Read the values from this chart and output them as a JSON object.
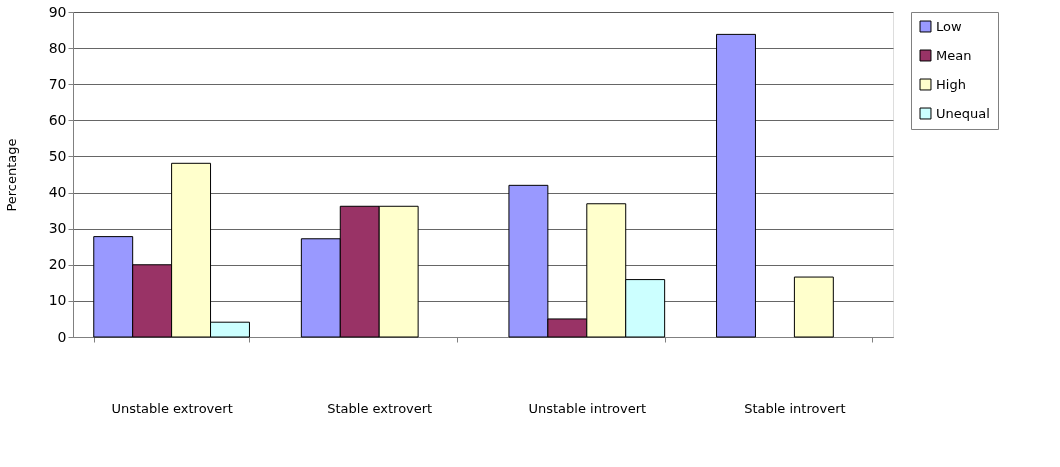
{
  "chart_data": {
    "type": "bar",
    "ylabel": "Percentage",
    "categories": [
      "Unstable extrovert",
      "Stable extrovert",
      "Unstable introvert",
      "Stable introvert"
    ],
    "series": [
      {
        "name": "Low",
        "color": "#9999ff",
        "values": [
          27.8,
          27.2,
          42,
          83.8
        ]
      },
      {
        "name": "Mean",
        "color": "#993366",
        "values": [
          20,
          36.2,
          5,
          null
        ]
      },
      {
        "name": "High",
        "color": "#ffffcc",
        "values": [
          48.1,
          36.2,
          36.9,
          16.6
        ]
      },
      {
        "name": "Unequal",
        "color": "#ccffff",
        "values": [
          4.1,
          null,
          15.9,
          null
        ]
      }
    ],
    "ylim": [
      0,
      90
    ],
    "yticks": [
      0,
      10,
      20,
      30,
      40,
      50,
      60,
      70,
      80,
      90
    ],
    "grid": "y",
    "legend": "right"
  }
}
